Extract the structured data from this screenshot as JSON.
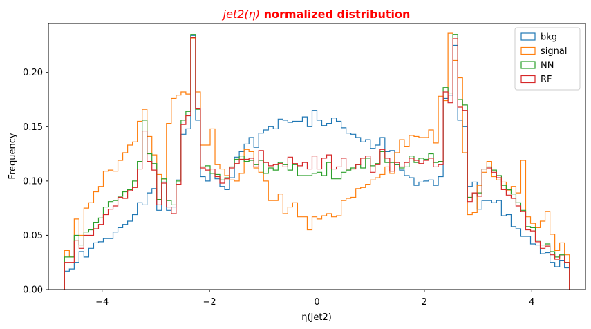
{
  "chart_data": {
    "type": "histogram-step",
    "title": {
      "prefix": "jet2(η)",
      "suffix": " normalized distribution",
      "color": "#ff0000"
    },
    "xlabel": "η(Jet2)",
    "ylabel": "Frequency",
    "xlim": [
      -5.0,
      5.0
    ],
    "ylim": [
      0.0,
      0.245
    ],
    "xticks": [
      -4,
      -2,
      0,
      2,
      4
    ],
    "xtick_labels": [
      "−4",
      "−2",
      "0",
      "2",
      "4"
    ],
    "yticks": [
      0.0,
      0.05,
      0.1,
      0.15,
      0.2
    ],
    "ytick_labels": [
      "0.00",
      "0.05",
      "0.10",
      "0.15",
      "0.20"
    ],
    "grid": false,
    "legend_position": "top-right",
    "bin_range": [
      -4.7,
      4.7
    ],
    "series": [
      {
        "name": "bkg",
        "color": "#1f77b4",
        "values": [
          0.017,
          0.019,
          0.025,
          0.035,
          0.03,
          0.038,
          0.043,
          0.044,
          0.047,
          0.047,
          0.053,
          0.057,
          0.06,
          0.063,
          0.069,
          0.08,
          0.078,
          0.089,
          0.093,
          0.073,
          0.099,
          0.073,
          0.076,
          0.101,
          0.143,
          0.148,
          0.234,
          0.156,
          0.104,
          0.1,
          0.107,
          0.102,
          0.095,
          0.092,
          0.103,
          0.122,
          0.127,
          0.134,
          0.14,
          0.131,
          0.144,
          0.147,
          0.15,
          0.148,
          0.157,
          0.156,
          0.154,
          0.155,
          0.155,
          0.159,
          0.15,
          0.165,
          0.156,
          0.151,
          0.153,
          0.158,
          0.155,
          0.149,
          0.144,
          0.143,
          0.14,
          0.136,
          0.138,
          0.13,
          0.133,
          0.14,
          0.127,
          0.128,
          0.115,
          0.11,
          0.105,
          0.103,
          0.096,
          0.099,
          0.1,
          0.101,
          0.096,
          0.104,
          0.176,
          0.179,
          0.225,
          0.156,
          0.15,
          0.095,
          0.099,
          0.074,
          0.082,
          0.082,
          0.08,
          0.082,
          0.068,
          0.069,
          0.058,
          0.056,
          0.049,
          0.049,
          0.042,
          0.041,
          0.033,
          0.034,
          0.025,
          0.021,
          0.027,
          0.02
        ]
      },
      {
        "name": "signal",
        "color": "#ff7f0e",
        "values": [
          0.036,
          0.03,
          0.065,
          0.05,
          0.075,
          0.08,
          0.09,
          0.095,
          0.109,
          0.11,
          0.109,
          0.119,
          0.126,
          0.133,
          0.136,
          0.155,
          0.166,
          0.141,
          0.124,
          0.106,
          0.101,
          0.153,
          0.176,
          0.179,
          0.182,
          0.18,
          0.231,
          0.182,
          0.133,
          0.133,
          0.148,
          0.115,
          0.111,
          0.105,
          0.101,
          0.1,
          0.107,
          0.129,
          0.127,
          0.112,
          0.108,
          0.1,
          0.082,
          0.082,
          0.088,
          0.07,
          0.076,
          0.08,
          0.067,
          0.067,
          0.055,
          0.067,
          0.065,
          0.068,
          0.07,
          0.067,
          0.068,
          0.082,
          0.084,
          0.085,
          0.093,
          0.094,
          0.097,
          0.101,
          0.103,
          0.106,
          0.113,
          0.107,
          0.126,
          0.138,
          0.132,
          0.142,
          0.141,
          0.14,
          0.14,
          0.147,
          0.135,
          0.178,
          0.174,
          0.236,
          0.211,
          0.195,
          0.126,
          0.069,
          0.071,
          0.096,
          0.108,
          0.118,
          0.104,
          0.101,
          0.099,
          0.091,
          0.095,
          0.089,
          0.119,
          0.067,
          0.061,
          0.057,
          0.063,
          0.072,
          0.051,
          0.036,
          0.043,
          0.032
        ]
      },
      {
        "name": "NN",
        "color": "#2ca02c",
        "values": [
          0.03,
          0.03,
          0.05,
          0.041,
          0.053,
          0.055,
          0.062,
          0.066,
          0.076,
          0.081,
          0.082,
          0.086,
          0.09,
          0.092,
          0.1,
          0.118,
          0.156,
          0.125,
          0.116,
          0.083,
          0.102,
          0.082,
          0.078,
          0.1,
          0.156,
          0.164,
          0.235,
          0.166,
          0.113,
          0.114,
          0.107,
          0.106,
          0.101,
          0.103,
          0.113,
          0.12,
          0.123,
          0.118,
          0.119,
          0.115,
          0.119,
          0.107,
          0.112,
          0.11,
          0.117,
          0.115,
          0.11,
          0.115,
          0.105,
          0.105,
          0.105,
          0.107,
          0.108,
          0.105,
          0.117,
          0.102,
          0.102,
          0.108,
          0.11,
          0.112,
          0.115,
          0.112,
          0.121,
          0.114,
          0.116,
          0.127,
          0.117,
          0.117,
          0.115,
          0.112,
          0.113,
          0.123,
          0.117,
          0.121,
          0.12,
          0.125,
          0.117,
          0.118,
          0.186,
          0.181,
          0.235,
          0.175,
          0.17,
          0.085,
          0.089,
          0.089,
          0.111,
          0.113,
          0.11,
          0.105,
          0.096,
          0.092,
          0.088,
          0.08,
          0.073,
          0.058,
          0.057,
          0.045,
          0.041,
          0.042,
          0.035,
          0.03,
          0.032,
          0.025
        ]
      },
      {
        "name": "RF",
        "color": "#d62728",
        "values": [
          0.025,
          0.025,
          0.045,
          0.038,
          0.05,
          0.05,
          0.056,
          0.06,
          0.069,
          0.074,
          0.077,
          0.085,
          0.084,
          0.091,
          0.094,
          0.111,
          0.146,
          0.118,
          0.11,
          0.078,
          0.098,
          0.076,
          0.07,
          0.097,
          0.152,
          0.16,
          0.232,
          0.167,
          0.112,
          0.11,
          0.111,
          0.104,
          0.098,
          0.102,
          0.112,
          0.116,
          0.12,
          0.12,
          0.121,
          0.113,
          0.128,
          0.117,
          0.114,
          0.115,
          0.116,
          0.113,
          0.122,
          0.116,
          0.114,
          0.117,
          0.111,
          0.123,
          0.111,
          0.121,
          0.124,
          0.111,
          0.113,
          0.121,
          0.111,
          0.111,
          0.115,
          0.121,
          0.123,
          0.108,
          0.115,
          0.129,
          0.121,
          0.109,
          0.117,
          0.113,
          0.117,
          0.121,
          0.119,
          0.116,
          0.119,
          0.121,
          0.113,
          0.115,
          0.182,
          0.172,
          0.231,
          0.168,
          0.165,
          0.081,
          0.089,
          0.086,
          0.111,
          0.112,
          0.108,
          0.103,
          0.092,
          0.087,
          0.084,
          0.077,
          0.072,
          0.055,
          0.054,
          0.044,
          0.038,
          0.04,
          0.032,
          0.028,
          0.031,
          0.025
        ]
      }
    ]
  }
}
